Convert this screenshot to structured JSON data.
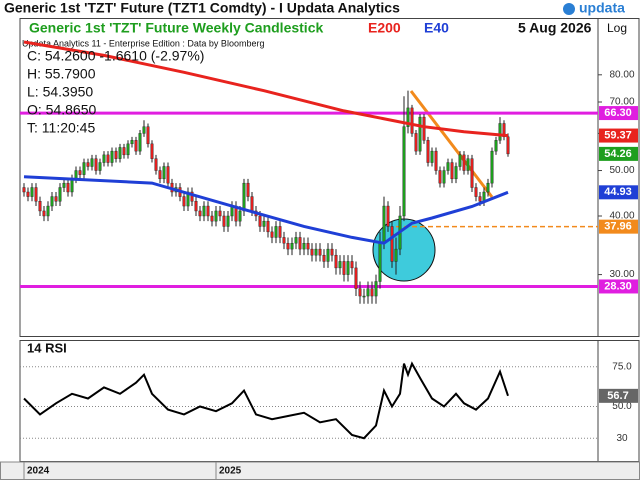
{
  "header": {
    "title": "Generic 1st 'TZT' Future (TZT1 Comdty) - I Updata Analytics",
    "logo": "updata"
  },
  "date": "5 Aug 2026",
  "scale_label": "Log",
  "chart_data": [
    {
      "type": "candlestick",
      "title": "Generic 1st 'TZT' Future Weekly Candlestick",
      "subtitle": "Updata Analytics 11 - Enterprise Edition : Data by Bloomberg",
      "info": [
        "C: 54.2600  -1.6610 (-2.97%)",
        "H: 55.7900",
        "L: 54.3950",
        "O: 54.8650",
        "T: 11:20:45"
      ],
      "log_scale": true,
      "up_color": "#1e9e1e",
      "down_color": "#e02020",
      "xlim": [
        -1,
        143.5
      ],
      "ylim": [
        22.3,
        104.7
      ],
      "yticks": [
        {
          "value": 30,
          "label": "30.00"
        },
        {
          "value": 40,
          "label": "40.00"
        },
        {
          "value": 50,
          "label": "50.00"
        },
        {
          "value": 60,
          "label": "60.00"
        },
        {
          "value": 70,
          "label": "70.00"
        },
        {
          "value": 80,
          "label": "80.00"
        }
      ],
      "open": [
        46,
        45,
        44,
        46,
        43,
        41,
        40,
        42,
        44,
        43,
        46,
        47,
        45,
        48,
        50,
        49,
        52,
        51,
        53,
        50,
        52,
        54,
        52,
        55,
        53,
        56,
        54,
        57,
        58,
        55,
        60,
        62,
        57,
        53,
        50,
        48,
        51,
        47,
        45,
        46,
        44,
        42,
        45,
        43,
        41,
        40,
        42,
        40,
        39,
        41,
        40,
        38,
        40,
        42,
        39,
        41,
        47,
        44,
        41,
        40,
        38,
        39,
        37,
        36,
        38,
        36,
        35,
        34,
        35,
        36,
        34,
        35,
        34,
        33,
        34,
        33,
        32,
        34,
        33,
        31,
        32,
        30,
        32,
        31,
        28,
        27,
        27,
        28,
        27,
        29,
        35,
        42,
        38,
        32,
        34,
        40,
        62,
        68,
        60,
        55,
        65,
        58,
        52,
        55,
        50,
        47,
        50,
        52,
        48,
        51,
        54,
        50,
        53,
        46,
        44,
        43,
        45,
        47,
        55,
        58,
        63,
        59
      ],
      "high": [
        47,
        46,
        47,
        47,
        44,
        42,
        43,
        45,
        45,
        47,
        48,
        48,
        49,
        51,
        51,
        53,
        53,
        54,
        54,
        53,
        55,
        55,
        56,
        56,
        57,
        57,
        58,
        59,
        59,
        61,
        64,
        63,
        58,
        54,
        51,
        52,
        52,
        48,
        47,
        47,
        45,
        46,
        46,
        44,
        42,
        43,
        43,
        41,
        42,
        42,
        41,
        41,
        43,
        43,
        42,
        48,
        48,
        45,
        42,
        41,
        40,
        40,
        38,
        39,
        39,
        37,
        36,
        36,
        37,
        37,
        36,
        36,
        35,
        35,
        35,
        34,
        35,
        35,
        34,
        33,
        33,
        33,
        33,
        32,
        29,
        28,
        29,
        29,
        30,
        37,
        44,
        43,
        39,
        36,
        42,
        72,
        74,
        69,
        61,
        66,
        66,
        59,
        56,
        56,
        51,
        51,
        53,
        53,
        52,
        55,
        55,
        54,
        54,
        47,
        45,
        46,
        48,
        56,
        59,
        65,
        64,
        60
      ],
      "low": [
        44,
        43,
        43,
        42,
        40,
        39,
        39,
        41,
        42,
        42,
        45,
        44,
        44,
        47,
        48,
        48,
        50,
        50,
        49,
        49,
        51,
        51,
        51,
        52,
        52,
        53,
        53,
        56,
        54,
        54,
        59,
        56,
        52,
        49,
        47,
        47,
        46,
        44,
        44,
        43,
        41,
        41,
        42,
        40,
        39,
        39,
        39,
        38,
        38,
        39,
        37,
        37,
        39,
        38,
        38,
        40,
        43,
        40,
        39,
        37,
        37,
        36,
        35,
        35,
        35,
        34,
        33,
        33,
        34,
        33,
        33,
        33,
        32,
        32,
        32,
        31,
        31,
        32,
        30,
        30,
        29,
        29,
        30,
        27,
        26,
        26,
        26,
        26,
        26,
        28,
        34,
        37,
        31,
        30,
        33,
        39,
        60,
        59,
        54,
        54,
        57,
        51,
        51,
        49,
        46,
        46,
        49,
        47,
        47,
        50,
        49,
        49,
        45,
        43,
        42,
        42,
        44,
        46,
        54,
        57,
        58,
        53.5
      ],
      "close": [
        45,
        44,
        46,
        43,
        41,
        40,
        42,
        44,
        43,
        46,
        47,
        45,
        48,
        50,
        49,
        52,
        51,
        53,
        50,
        52,
        54,
        52,
        55,
        53,
        56,
        54,
        57,
        58,
        55,
        60,
        62,
        57,
        53,
        50,
        48,
        51,
        47,
        45,
        46,
        44,
        42,
        45,
        43,
        41,
        40,
        42,
        40,
        39,
        41,
        40,
        38,
        40,
        42,
        39,
        41,
        47,
        44,
        41,
        40,
        38,
        39,
        37,
        36,
        38,
        36,
        35,
        34,
        35,
        36,
        34,
        35,
        34,
        33,
        34,
        33,
        32,
        34,
        33,
        31,
        32,
        30,
        32,
        31,
        28,
        27,
        27,
        28,
        27,
        29,
        35,
        42,
        38,
        32,
        34,
        40,
        62,
        68,
        60,
        55,
        65,
        58,
        52,
        55,
        50,
        47,
        50,
        52,
        48,
        51,
        54,
        50,
        53,
        46,
        44,
        43,
        45,
        47,
        55,
        58,
        63,
        59,
        54.26
      ],
      "close_label": "54.26",
      "series": [
        {
          "name": "E200",
          "color": "#e8231e",
          "x": [
            0,
            20,
            40,
            60,
            80,
            100,
            110,
            121
          ],
          "values": [
            94,
            88,
            81,
            74,
            67,
            62,
            60.5,
            59.37
          ],
          "last_label": "59.37"
        },
        {
          "name": "E40",
          "color": "#1f3fd6",
          "x": [
            0,
            32,
            52,
            70,
            82,
            90,
            97,
            102,
            112,
            121
          ],
          "values": [
            48.5,
            47,
            42,
            38,
            36,
            35,
            38.6,
            39.6,
            41.9,
            44.93
          ],
          "last_label": "44.93"
        }
      ],
      "hlines": [
        {
          "value": 66.3,
          "label": "66.30",
          "color": "#e01ee0",
          "style": "solid",
          "x_start": -1
        },
        {
          "value": 28.3,
          "label": "28.30",
          "color": "#e01ee0",
          "style": "solid",
          "x_start": -1
        },
        {
          "value": 37.96,
          "label": "37.96",
          "color": "#f28a1c",
          "style": "dashed",
          "x_start": 93
        }
      ]
    },
    {
      "type": "line",
      "title": "14 RSI",
      "color": "#000000",
      "xlim": [
        -1,
        143.5
      ],
      "ylim": [
        15,
        91.9
      ],
      "yticks": [
        30,
        {
          "value": 50,
          "label": "50.0"
        },
        {
          "value": 75,
          "label": "75.0"
        }
      ],
      "xticks": [
        {
          "value": 0,
          "label": "2024"
        },
        {
          "value": 48,
          "label": "2025"
        }
      ],
      "x": [
        0,
        4,
        8,
        12,
        16,
        20,
        24,
        28,
        30,
        32,
        36,
        40,
        44,
        48,
        52,
        55,
        58,
        62,
        66,
        70,
        74,
        78,
        82,
        85,
        88,
        90,
        92,
        94,
        95,
        96,
        97,
        99,
        102,
        105,
        108,
        110,
        113,
        116,
        119,
        121
      ],
      "values": [
        55,
        45,
        52,
        58,
        55,
        62,
        58,
        65,
        70,
        58,
        48,
        45,
        50,
        47,
        52,
        60,
        45,
        42,
        44,
        46,
        40,
        42,
        32,
        30,
        38,
        60,
        50,
        58,
        77,
        70,
        77,
        68,
        55,
        50,
        58,
        52,
        48,
        55,
        72,
        56.7
      ],
      "last_label": "56.7"
    }
  ]
}
